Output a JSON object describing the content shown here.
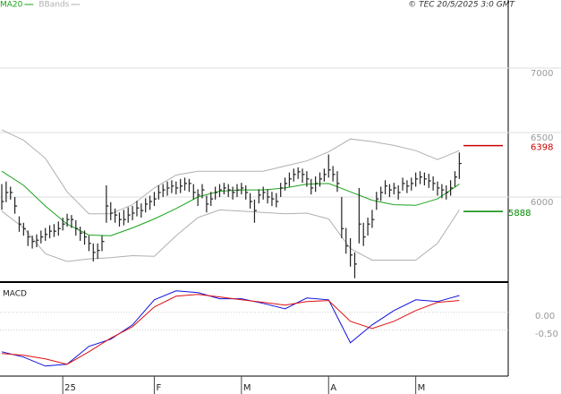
{
  "chart_data": {
    "type": "ohlc",
    "source": "© TEC 20/5/2025 3:0 GMT",
    "categories": [
      null,
      null,
      null,
      null,
      null,
      null,
      null,
      null,
      null,
      null,
      null,
      null,
      null,
      null,
      "25",
      null,
      null,
      null,
      null,
      null,
      null,
      null,
      null,
      null,
      null,
      null,
      null,
      null,
      null,
      null,
      null,
      null,
      null,
      null,
      null,
      "F",
      null,
      null,
      null,
      null,
      null,
      null,
      null,
      null,
      null,
      null,
      null,
      null,
      null,
      null,
      null,
      null,
      null,
      null,
      null,
      "M",
      null,
      null,
      null,
      null,
      null,
      null,
      null,
      null,
      null,
      null,
      null,
      null,
      null,
      null,
      null,
      null,
      null,
      null,
      null,
      "A",
      null,
      null,
      null,
      null,
      null,
      null,
      null,
      null,
      null,
      null,
      null,
      null,
      null,
      null,
      null,
      null,
      null,
      null,
      null,
      "M",
      null,
      null,
      null,
      null,
      null,
      null,
      null,
      null,
      null,
      null
    ],
    "close": [
      5965,
      6035,
      6035,
      5930,
      5790,
      5755,
      5690,
      5655,
      5665,
      5690,
      5710,
      5735,
      5735,
      5755,
      5790,
      5825,
      5825,
      5755,
      5720,
      5690,
      5640,
      5570,
      5585,
      5655,
      5930,
      5875,
      5860,
      5825,
      5825,
      5860,
      5875,
      5915,
      5895,
      5945,
      5965,
      5985,
      6035,
      6055,
      6070,
      6085,
      6070,
      6085,
      6105,
      6105,
      6035,
      6015,
      6055,
      5945,
      5985,
      6035,
      6055,
      6070,
      6055,
      6035,
      6055,
      6070,
      6035,
      5965,
      5895,
      6015,
      6035,
      6000,
      5985,
      5965,
      6070,
      6105,
      6140,
      6175,
      6195,
      6175,
      6140,
      6070,
      6105,
      6140,
      6175,
      6210,
      6175,
      6105,
      5755,
      5620,
      5550,
      5480,
      5790,
      5690,
      5790,
      5825,
      5985,
      6035,
      6085,
      6055,
      6070,
      6035,
      6105,
      6085,
      6105,
      6140,
      6155,
      6140,
      6125,
      6105,
      6070,
      6055,
      6035,
      6070,
      6155,
      6260
    ],
    "high": [
      6100,
      6120,
      6080,
      6000,
      5850,
      5800,
      5740,
      5700,
      5710,
      5740,
      5760,
      5780,
      5790,
      5810,
      5840,
      5870,
      5860,
      5820,
      5770,
      5740,
      5700,
      5640,
      5640,
      5700,
      6090,
      5960,
      5910,
      5880,
      5900,
      5920,
      5930,
      5970,
      5950,
      5990,
      6010,
      6040,
      6090,
      6100,
      6120,
      6130,
      6120,
      6140,
      6150,
      6140,
      6100,
      6060,
      6100,
      6010,
      6040,
      6080,
      6100,
      6110,
      6100,
      6080,
      6100,
      6110,
      6090,
      6030,
      5980,
      6060,
      6080,
      6060,
      6040,
      6030,
      6110,
      6150,
      6190,
      6220,
      6230,
      6220,
      6200,
      6140,
      6160,
      6190,
      6220,
      6330,
      6240,
      6200,
      6000,
      5760,
      5680,
      5570,
      6070,
      5800,
      5840,
      5900,
      6040,
      6080,
      6130,
      6100,
      6110,
      6090,
      6150,
      6130,
      6150,
      6190,
      6200,
      6190,
      6180,
      6160,
      6120,
      6100,
      6090,
      6130,
      6200,
      6345
    ],
    "low": [
      5900,
      5960,
      5980,
      5870,
      5730,
      5700,
      5620,
      5600,
      5610,
      5640,
      5660,
      5680,
      5690,
      5700,
      5740,
      5770,
      5760,
      5700,
      5660,
      5630,
      5580,
      5500,
      5520,
      5580,
      5800,
      5820,
      5800,
      5770,
      5780,
      5800,
      5820,
      5850,
      5840,
      5880,
      5900,
      5930,
      5980,
      6000,
      6010,
      6030,
      6020,
      6030,
      6050,
      6040,
      5980,
      5930,
      5990,
      5880,
      5930,
      5980,
      6000,
      6020,
      6000,
      5980,
      6000,
      6020,
      5980,
      5910,
      5800,
      5950,
      5980,
      5950,
      5930,
      5920,
      6000,
      6050,
      6080,
      6120,
      6140,
      6110,
      6080,
      6020,
      6040,
      6080,
      6120,
      6150,
      6120,
      6040,
      5680,
      5560,
      5460,
      5370,
      5640,
      5620,
      5700,
      5760,
      5900,
      5970,
      6020,
      6000,
      6020,
      5980,
      6050,
      6030,
      6050,
      6080,
      6100,
      6090,
      6070,
      6050,
      6010,
      5990,
      5980,
      6010,
      6080,
      6140
    ],
    "color": "#222222",
    "ylim": [
      5347,
      7528
    ],
    "yticks": [
      6000,
      6500,
      7000
    ],
    "grid": true,
    "series": [
      {
        "name": "MA20",
        "color": "#1aa31a",
        "x": [
          0,
          5,
          10,
          15,
          20,
          25,
          30,
          35,
          40,
          45,
          50,
          55,
          60,
          65,
          70,
          75,
          80,
          85,
          90,
          95,
          100,
          105
        ],
        "values": [
          6200,
          6090,
          5930,
          5790,
          5705,
          5700,
          5760,
          5830,
          5910,
          6000,
          6045,
          6055,
          6055,
          6070,
          6100,
          6105,
          6040,
          5975,
          5940,
          5935,
          5985,
          6100
        ]
      },
      {
        "name": "BBands",
        "color": "#b0b0b0",
        "x": [
          0,
          5,
          10,
          15,
          20,
          25,
          30,
          35,
          40,
          45,
          50,
          55,
          60,
          65,
          70,
          75,
          80,
          85,
          90,
          95,
          100,
          105
        ],
        "upper": [
          6520,
          6440,
          6300,
          6040,
          5870,
          5870,
          5940,
          6070,
          6170,
          6200,
          6200,
          6200,
          6200,
          6240,
          6280,
          6350,
          6450,
          6430,
          6400,
          6360,
          6290,
          6360
        ],
        "lower": [
          5890,
          5760,
          5560,
          5500,
          5520,
          5530,
          5545,
          5540,
          5700,
          5840,
          5900,
          5890,
          5880,
          5870,
          5875,
          5830,
          5600,
          5510,
          5510,
          5510,
          5640,
          5900
        ]
      }
    ],
    "levels": [
      {
        "value": 6398,
        "color": "#cc0000"
      },
      {
        "value": 5888,
        "color": "#008800"
      }
    ],
    "indicator": {
      "type": "line",
      "title": "MACD",
      "ylim": [
        -1.78,
        0.82
      ],
      "yticks": [
        {
          "value": 0,
          "label": "0.00"
        },
        {
          "value": -0.5,
          "label": "-0.50"
        }
      ],
      "series": [
        {
          "color": "#1010dd",
          "x": [
            0,
            5,
            10,
            15,
            20,
            25,
            30,
            35,
            40,
            45,
            50,
            55,
            60,
            65,
            70,
            75,
            80,
            85,
            90,
            95,
            100,
            105
          ],
          "values": [
            -1.1,
            -1.25,
            -1.5,
            -1.45,
            -0.95,
            -0.75,
            -0.35,
            0.35,
            0.6,
            0.55,
            0.38,
            0.38,
            0.25,
            0.1,
            0.4,
            0.35,
            -0.85,
            -0.35,
            0.05,
            0.35,
            0.3,
            0.47
          ]
        },
        {
          "color": "#dd1010",
          "x": [
            0,
            5,
            10,
            15,
            20,
            25,
            30,
            35,
            40,
            45,
            50,
            55,
            60,
            65,
            70,
            75,
            80,
            85,
            90,
            95,
            100,
            105
          ],
          "values": [
            -1.15,
            -1.2,
            -1.3,
            -1.45,
            -1.1,
            -0.72,
            -0.4,
            0.15,
            0.45,
            0.5,
            0.43,
            0.35,
            0.28,
            0.2,
            0.3,
            0.33,
            -0.25,
            -0.45,
            -0.25,
            0.05,
            0.28,
            0.33
          ]
        }
      ]
    }
  }
}
